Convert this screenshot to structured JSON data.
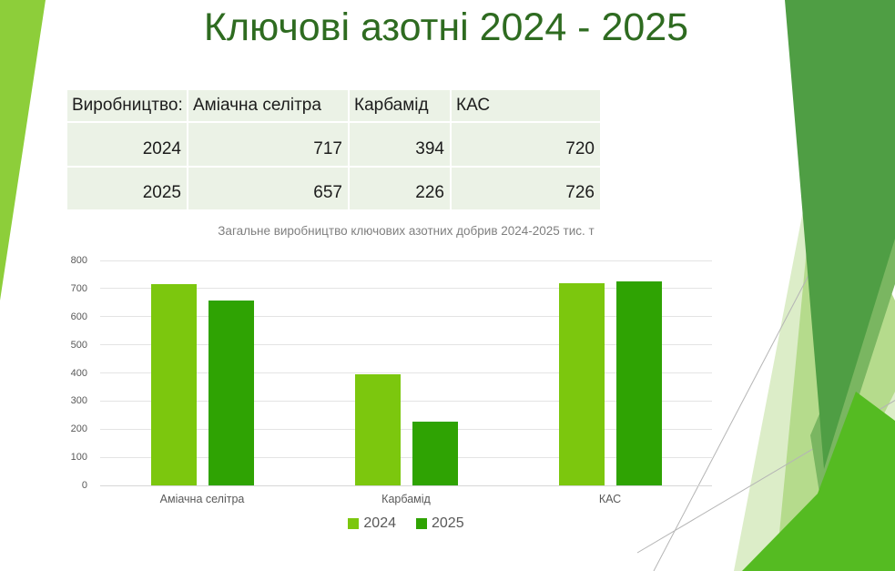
{
  "slide": {
    "title": "Ключові азотні 2024 - 2025"
  },
  "table": {
    "headers": [
      "Виробництво:",
      "Аміачна селітра",
      "Карбамід",
      "КАС"
    ],
    "rows": [
      [
        "2024",
        "717",
        "394",
        "720"
      ],
      [
        "2025",
        "657",
        "226",
        "726"
      ]
    ]
  },
  "chart_data": {
    "type": "bar",
    "title": "Загальне виробництво ключових азотних добрив 2024-2025 тис. т",
    "categories": [
      "Аміачна селітра",
      "Карбамід",
      "КАС"
    ],
    "series": [
      {
        "name": "2024",
        "values": [
          717,
          394,
          720
        ],
        "color": "#7cc70e"
      },
      {
        "name": "2025",
        "values": [
          657,
          226,
          726
        ],
        "color": "#2fa303"
      }
    ],
    "ylim": [
      0,
      800
    ],
    "ytick_step": 100,
    "grid": true,
    "legend_position": "bottom"
  },
  "theme": {
    "title_color": "#2e6b20",
    "table_bg": "#ebf2e6",
    "left_triangle": "#8dce3a",
    "decor_medium_green": "#4f9e44",
    "decor_mid_band": "#7ab661",
    "decor_light_green": "#b5db8c",
    "decor_pale_green": "#dcedc8",
    "decor_bright_green": "#55bb22",
    "decor_line_gray": "#b5b5b5"
  }
}
